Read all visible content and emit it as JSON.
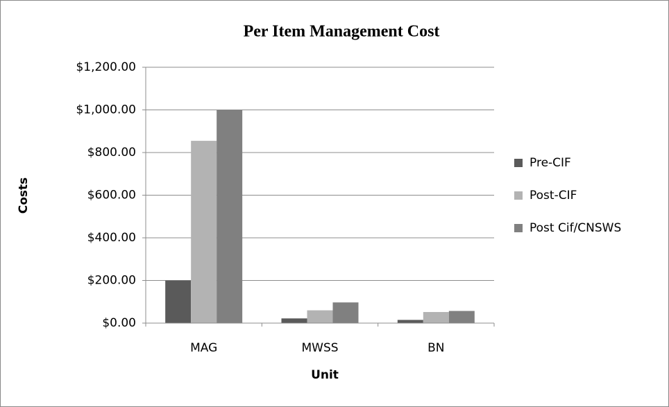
{
  "chart_data": {
    "type": "bar",
    "title": "Per Item Management Cost",
    "x_label": "Unit",
    "y_label": "Costs",
    "categories": [
      "MAG",
      "MWSS",
      "BN"
    ],
    "series": [
      {
        "name": "Pre-CIF",
        "color": "#5a5a5a",
        "values": [
          200,
          22,
          15
        ]
      },
      {
        "name": "Post-CIF",
        "color": "#b3b3b3",
        "values": [
          855,
          60,
          52
        ]
      },
      {
        "name": "Post Cif/CNSWS",
        "color": "#808080",
        "values": [
          1000,
          97,
          57
        ]
      }
    ],
    "ylim": [
      0,
      1200
    ],
    "yticks": [
      {
        "value": 0,
        "label": "$0.00"
      },
      {
        "value": 200,
        "label": "$200.00"
      },
      {
        "value": 400,
        "label": "$400.00"
      },
      {
        "value": 600,
        "label": "$600.00"
      },
      {
        "value": 800,
        "label": "$800.00"
      },
      {
        "value": 1000,
        "label": "$1,000.00"
      },
      {
        "value": 1200,
        "label": "$1,200.00"
      }
    ],
    "grid": true,
    "legend": "right"
  }
}
